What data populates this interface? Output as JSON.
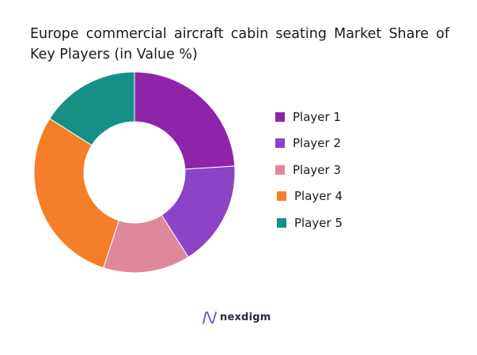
{
  "chart_data": {
    "type": "pie",
    "title": "Europe commercial aircraft cabin seating Market Share of Key Players (in Value %)",
    "categories": [
      "Player 1",
      "Player 2",
      "Player 3",
      "Player 4",
      "Player 5"
    ],
    "values": [
      24,
      17,
      14,
      29,
      16
    ],
    "unit": "%",
    "colors": [
      "#8e24aa",
      "#8b44c6",
      "#e0889b",
      "#f47f28",
      "#168f85"
    ],
    "donut": true,
    "legend_position": "right"
  },
  "brand": {
    "name": "nexdigm",
    "icon": "nexdigm-logo-icon"
  }
}
